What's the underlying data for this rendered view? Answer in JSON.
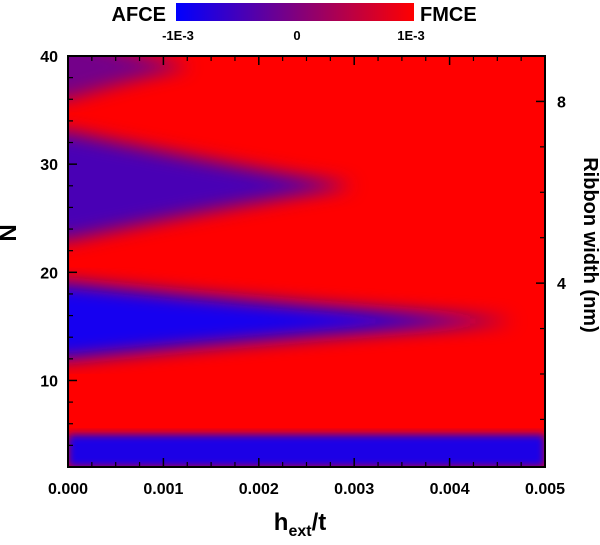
{
  "chart_data": {
    "type": "heatmap",
    "xlabel_main": "h",
    "xlabel_sub": "ext",
    "xlabel_tail": "/t",
    "ylabel": "N",
    "y2label": "Ribbon width (nm)",
    "xlim": [
      0,
      0.005
    ],
    "ylim": [
      2,
      40
    ],
    "x_ticks": [
      0.0,
      0.001,
      0.002,
      0.003,
      0.004,
      0.005
    ],
    "x_tick_labels": [
      "0.000",
      "0.001",
      "0.002",
      "0.003",
      "0.004",
      "0.005"
    ],
    "y_ticks": [
      10,
      20,
      30,
      40
    ],
    "y_tick_labels": [
      "10",
      "20",
      "30",
      "40"
    ],
    "y2_ticks": [
      4,
      8
    ],
    "y2_tick_labels": [
      "4",
      "8"
    ],
    "colorbar": {
      "low_label": "AFCE",
      "high_label": "FMCE",
      "range": [
        -0.001,
        0.001
      ],
      "tick_labels": [
        "-1E-3",
        "0",
        "1E-3"
      ],
      "low_color": "#0000ff",
      "mid_color": "#7f007f",
      "high_color": "#ff0000"
    },
    "regions": [
      {
        "phase": "AFCE",
        "N_center": 3.5,
        "N_halfwidth": 1.5,
        "h_extent": 0.005
      },
      {
        "phase": "AFCE",
        "N_center": 15.5,
        "N_halfwidth": 3.5,
        "h_extent": 0.0047
      },
      {
        "phase": "AFCE",
        "N_center": 28,
        "N_halfwidth": 5,
        "h_extent": 0.003
      },
      {
        "phase": "AFCE",
        "N_center": 39,
        "N_halfwidth": 3,
        "h_extent": 0.0013
      }
    ]
  }
}
